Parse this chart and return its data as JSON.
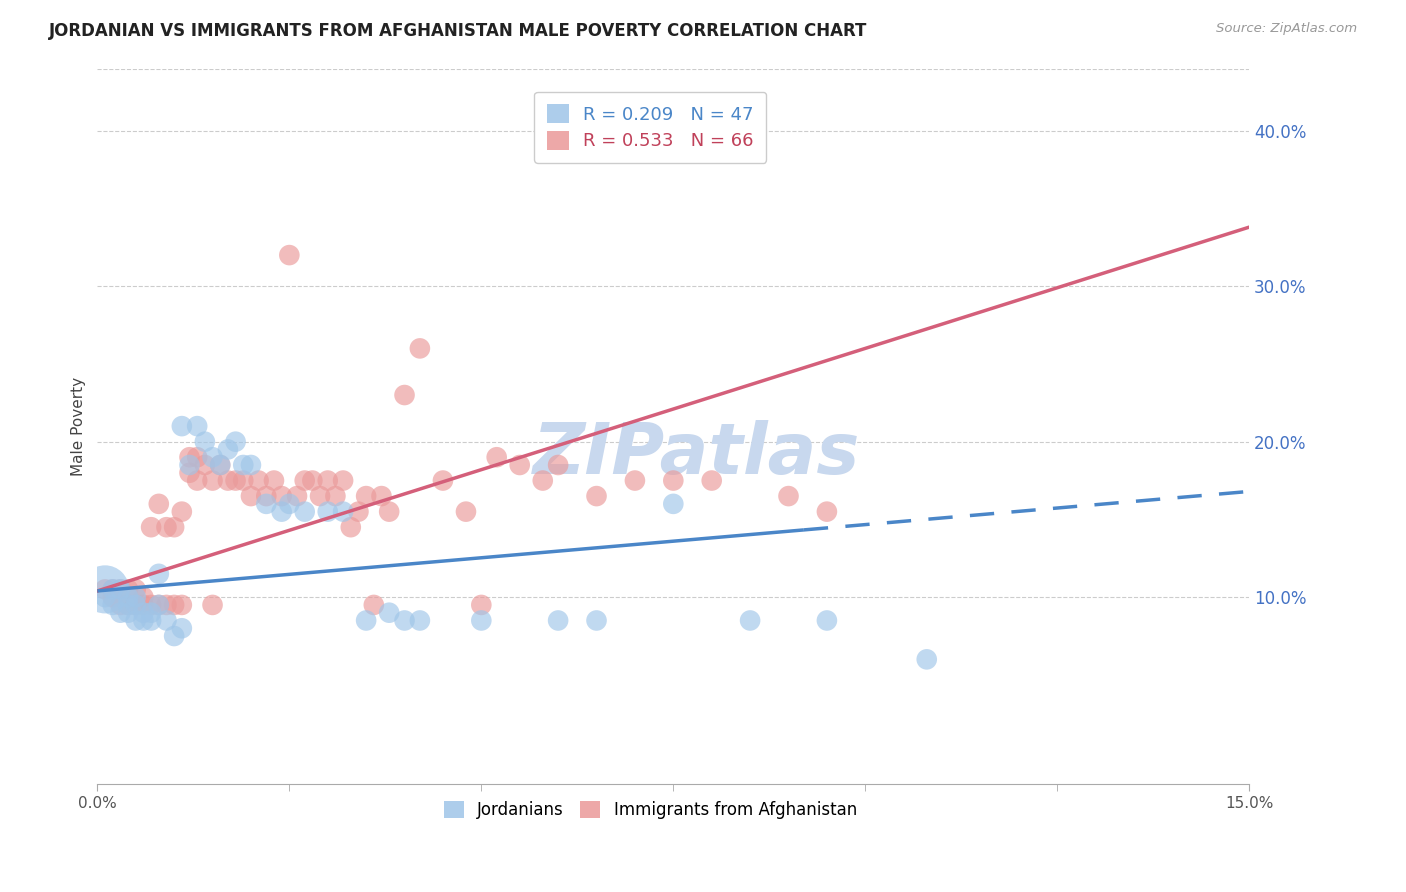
{
  "title": "JORDANIAN VS IMMIGRANTS FROM AFGHANISTAN MALE POVERTY CORRELATION CHART",
  "source": "Source: ZipAtlas.com",
  "ylabel": "Male Poverty",
  "xlim": [
    0.0,
    0.15
  ],
  "ylim": [
    -0.02,
    0.44
  ],
  "yticks_right": [
    0.1,
    0.2,
    0.3,
    0.4
  ],
  "ytick_labels_right": [
    "10.0%",
    "20.0%",
    "30.0%",
    "40.0%"
  ],
  "xticks_major": [
    0.0,
    0.15
  ],
  "xtick_major_labels": [
    "0.0%",
    "15.0%"
  ],
  "xticks_minor": [
    0.025,
    0.05,
    0.075,
    0.1,
    0.125
  ],
  "background_color": "#ffffff",
  "grid_color": "#cccccc",
  "jordan_R": 0.209,
  "jordan_N": 47,
  "afghan_R": 0.533,
  "afghan_N": 66,
  "jordan_color": "#9fc5e8",
  "afghan_color": "#ea9999",
  "jordan_line_color": "#4a86c8",
  "afghan_line_color": "#d45f7a",
  "jordan_line_x0": 0.0,
  "jordan_line_y0": 0.104,
  "jordan_line_x1": 0.15,
  "jordan_line_y1": 0.168,
  "afghan_line_x0": 0.0,
  "afghan_line_y0": 0.104,
  "afghan_line_x1": 0.15,
  "afghan_line_y1": 0.338,
  "jordan_scatter_x": [
    0.001,
    0.002,
    0.002,
    0.003,
    0.003,
    0.004,
    0.004,
    0.004,
    0.005,
    0.005,
    0.005,
    0.006,
    0.006,
    0.007,
    0.007,
    0.008,
    0.008,
    0.009,
    0.01,
    0.011,
    0.011,
    0.012,
    0.013,
    0.014,
    0.015,
    0.016,
    0.017,
    0.018,
    0.019,
    0.02,
    0.022,
    0.024,
    0.025,
    0.027,
    0.03,
    0.032,
    0.035,
    0.038,
    0.04,
    0.042,
    0.05,
    0.06,
    0.065,
    0.075,
    0.085,
    0.095,
    0.108
  ],
  "jordan_scatter_y": [
    0.1,
    0.105,
    0.095,
    0.105,
    0.09,
    0.1,
    0.095,
    0.09,
    0.1,
    0.095,
    0.085,
    0.085,
    0.09,
    0.085,
    0.09,
    0.115,
    0.095,
    0.085,
    0.075,
    0.08,
    0.21,
    0.185,
    0.21,
    0.2,
    0.19,
    0.185,
    0.195,
    0.2,
    0.185,
    0.185,
    0.16,
    0.155,
    0.16,
    0.155,
    0.155,
    0.155,
    0.085,
    0.09,
    0.085,
    0.085,
    0.085,
    0.085,
    0.085,
    0.16,
    0.085,
    0.085,
    0.06
  ],
  "jordan_big_x": [
    0.001
  ],
  "jordan_big_y": [
    0.105
  ],
  "jordan_big_size": [
    1200
  ],
  "afghan_scatter_x": [
    0.001,
    0.002,
    0.002,
    0.003,
    0.003,
    0.004,
    0.004,
    0.005,
    0.005,
    0.006,
    0.006,
    0.007,
    0.007,
    0.008,
    0.008,
    0.009,
    0.009,
    0.01,
    0.01,
    0.011,
    0.011,
    0.012,
    0.012,
    0.013,
    0.013,
    0.014,
    0.015,
    0.015,
    0.016,
    0.017,
    0.018,
    0.019,
    0.02,
    0.021,
    0.022,
    0.023,
    0.024,
    0.025,
    0.026,
    0.027,
    0.028,
    0.029,
    0.03,
    0.031,
    0.032,
    0.033,
    0.034,
    0.035,
    0.036,
    0.037,
    0.038,
    0.04,
    0.042,
    0.045,
    0.048,
    0.05,
    0.052,
    0.055,
    0.058,
    0.06,
    0.065,
    0.07,
    0.075,
    0.08,
    0.09,
    0.095
  ],
  "afghan_scatter_y": [
    0.105,
    0.105,
    0.1,
    0.105,
    0.095,
    0.105,
    0.095,
    0.105,
    0.095,
    0.1,
    0.095,
    0.145,
    0.095,
    0.16,
    0.095,
    0.145,
    0.095,
    0.145,
    0.095,
    0.155,
    0.095,
    0.19,
    0.18,
    0.19,
    0.175,
    0.185,
    0.175,
    0.095,
    0.185,
    0.175,
    0.175,
    0.175,
    0.165,
    0.175,
    0.165,
    0.175,
    0.165,
    0.32,
    0.165,
    0.175,
    0.175,
    0.165,
    0.175,
    0.165,
    0.175,
    0.145,
    0.155,
    0.165,
    0.095,
    0.165,
    0.155,
    0.23,
    0.26,
    0.175,
    0.155,
    0.095,
    0.19,
    0.185,
    0.175,
    0.185,
    0.165,
    0.175,
    0.175,
    0.175,
    0.165,
    0.155
  ],
  "watermark_text": "ZIPatlas",
  "watermark_color": "#c8d8ee",
  "legend_top_text1": "R = 0.209   N = 47",
  "legend_top_text2": "R = 0.533   N = 66",
  "legend_top_color1": "#4a86c8",
  "legend_top_color2": "#c0415a",
  "legend_bottom_labels": [
    "Jordanians",
    "Immigrants from Afghanistan"
  ]
}
